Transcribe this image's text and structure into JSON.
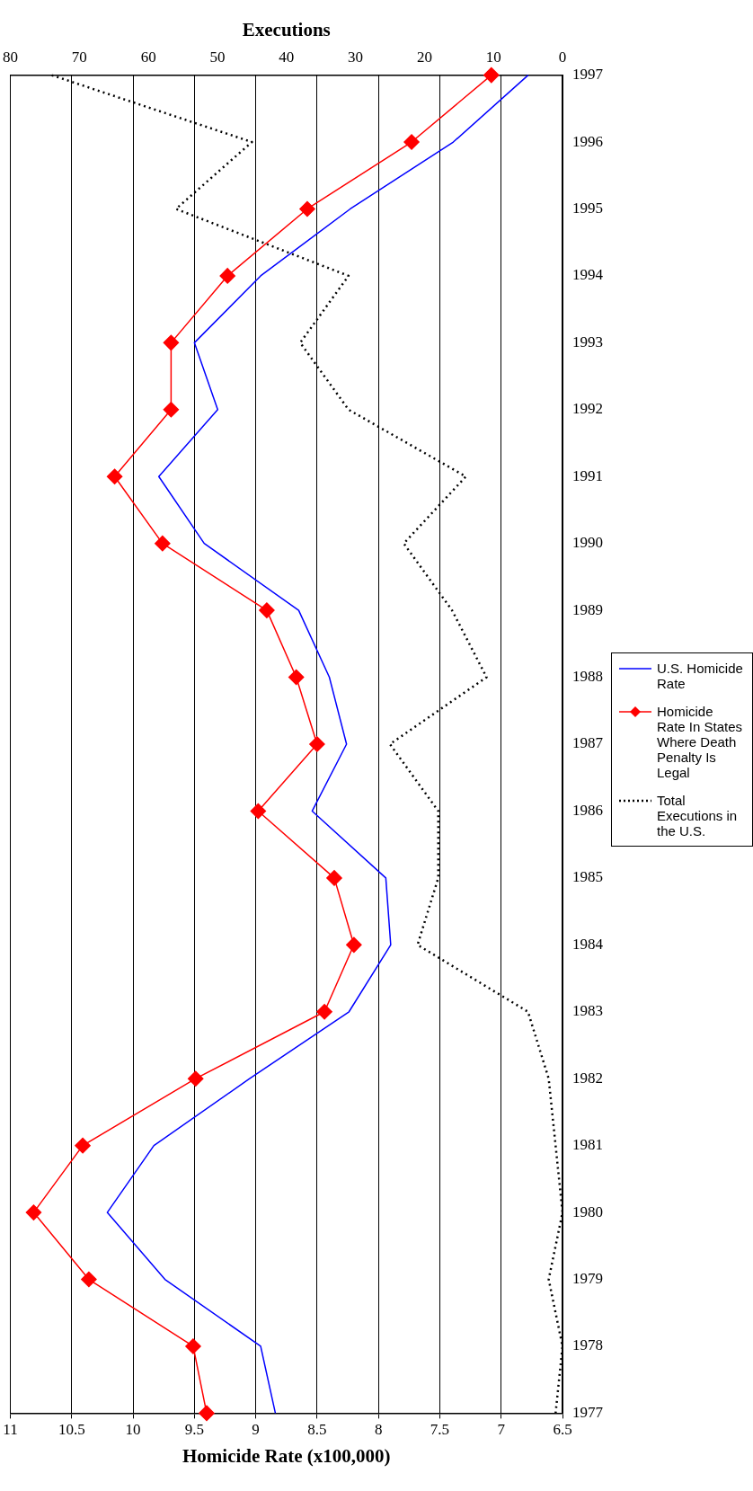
{
  "chart_data": {
    "type": "line",
    "orientation": "horizontal",
    "xlabel": "Homicide Rate (x100,000)",
    "x2label": "Executions",
    "categories": [
      "1997",
      "1996",
      "1995",
      "1994",
      "1993",
      "1992",
      "1991",
      "1990",
      "1989",
      "1988",
      "1987",
      "1986",
      "1985",
      "1984",
      "1983",
      "1982",
      "1981",
      "1980",
      "1979",
      "1978",
      "1977"
    ],
    "series": [
      {
        "name": "U.S. Homicide Rate",
        "color": "#0000ff",
        "marker": "none",
        "line_style": "solid",
        "values": [
          6.78,
          7.39,
          8.23,
          8.96,
          9.5,
          9.31,
          9.79,
          9.42,
          8.65,
          8.4,
          8.26,
          8.54,
          7.94,
          7.9,
          8.24,
          9.05,
          9.83,
          10.21,
          9.74,
          8.96,
          8.84
        ]
      },
      {
        "name": "Homicide Rate In States Where Death Penalty Is Legal",
        "color": "#ff0000",
        "marker": "diamond",
        "line_style": "solid",
        "values": [
          7.08,
          7.73,
          8.58,
          9.23,
          9.69,
          9.69,
          10.15,
          9.76,
          8.91,
          8.67,
          8.5,
          8.98,
          8.36,
          8.2,
          8.44,
          9.49,
          10.41,
          10.81,
          10.36,
          9.51,
          9.4
        ]
      },
      {
        "name": "Total Executions in the U.S.",
        "color": "#000000",
        "marker": "none",
        "line_style": "dotted",
        "axis": "x2",
        "values": [
          74,
          45,
          56,
          31,
          38,
          31,
          14,
          23,
          16,
          11,
          25,
          18,
          18,
          21,
          5,
          2,
          1,
          0,
          2,
          0,
          1
        ]
      }
    ],
    "xlim": [
      11,
      6.5
    ],
    "xticks": [
      11,
      10.5,
      10,
      9.5,
      9,
      8.5,
      8,
      7.5,
      7,
      6.5
    ],
    "x2lim": [
      80,
      0
    ],
    "x2ticks": [
      80,
      70,
      60,
      50,
      40,
      30,
      20,
      10,
      0
    ],
    "grid": "x",
    "legend": "right"
  }
}
